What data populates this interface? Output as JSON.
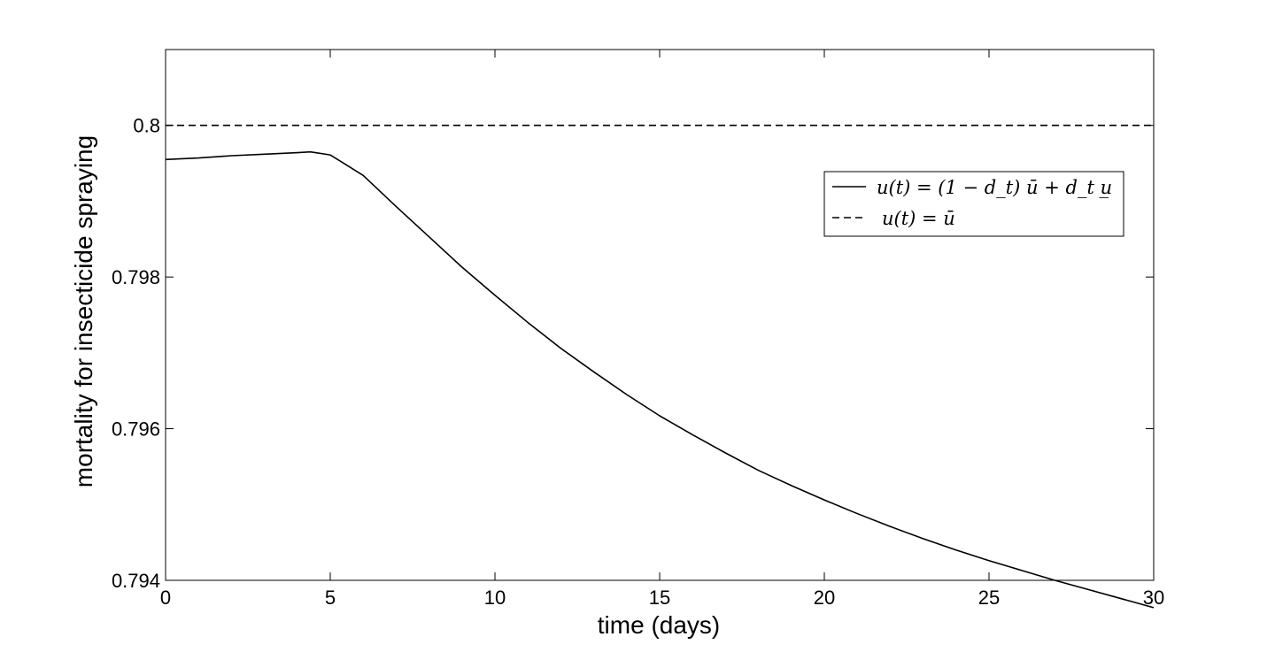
{
  "chart_data": {
    "type": "line",
    "xlabel": "time (days)",
    "ylabel": "mortality for insecticide spraying",
    "xlim": [
      0,
      30
    ],
    "ylim": [
      0.794,
      0.801
    ],
    "xticks": [
      0,
      5,
      10,
      15,
      20,
      25,
      30
    ],
    "xtick_labels": [
      "0",
      "5",
      "10",
      "15",
      "20",
      "25",
      "30"
    ],
    "yticks": [
      0.794,
      0.796,
      0.798,
      0.8
    ],
    "ytick_labels": [
      "0.794",
      "0.796",
      "0.798",
      "0.8"
    ],
    "grid": false,
    "legend_position": "upper-right",
    "series": [
      {
        "name": "u(t) = (1 − d_t) ū + d_t u̲",
        "style": "solid",
        "color": "#000000",
        "x": [
          0,
          1,
          2,
          3,
          4,
          4.4,
          5,
          6,
          7,
          8,
          9,
          10,
          11,
          12,
          13,
          14,
          15,
          16,
          17,
          18,
          19,
          20,
          21,
          22,
          23,
          24,
          25,
          26,
          27,
          28,
          29,
          30
        ],
        "y": [
          0.79955,
          0.79957,
          0.7996,
          0.79962,
          0.79964,
          0.79965,
          0.79961,
          0.79934,
          0.79893,
          0.79853,
          0.79813,
          0.79776,
          0.7974,
          0.79706,
          0.79675,
          0.79645,
          0.79617,
          0.79592,
          0.79568,
          0.79545,
          0.79525,
          0.79506,
          0.79488,
          0.79471,
          0.79455,
          0.7944,
          0.79426,
          0.79413,
          0.794,
          0.79388,
          0.79376,
          0.79364
        ]
      },
      {
        "name": "u(t) = ū",
        "style": "dashed",
        "color": "#000000",
        "x": [
          0,
          30
        ],
        "y": [
          0.8,
          0.8
        ]
      }
    ]
  }
}
